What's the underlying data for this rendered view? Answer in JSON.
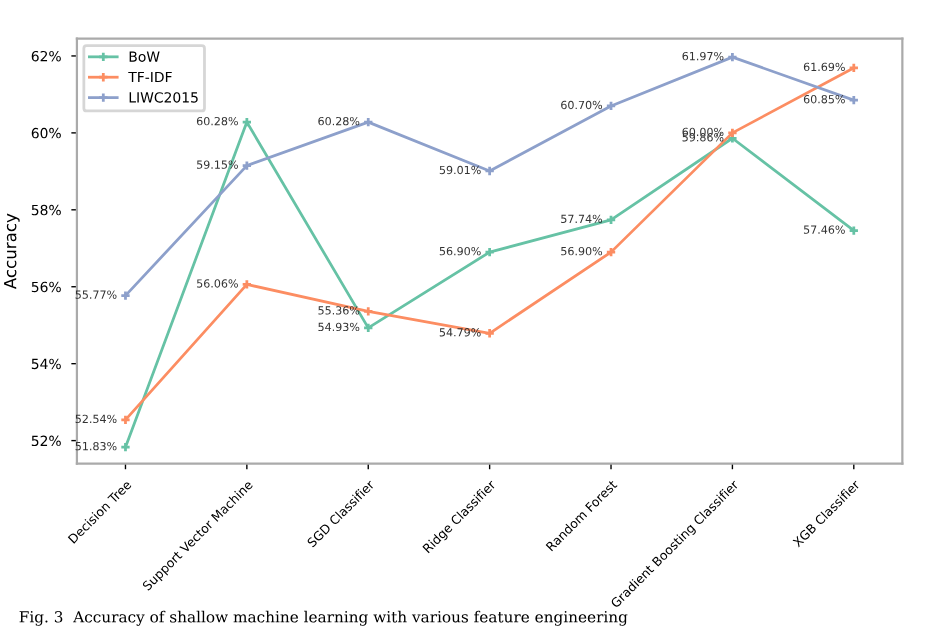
{
  "chart_data": {
    "type": "line",
    "ylabel": "Accuracy",
    "categories": [
      "Decision Tree",
      "Support Vector Machine",
      "SGD Classifier",
      "Ridge Classifier",
      "Random Forest",
      "Gradient Boosting Classifier",
      "XGB Classifier"
    ],
    "series": [
      {
        "name": "BoW",
        "color": "#66c2a5",
        "values": [
          51.83,
          60.28,
          54.93,
          56.9,
          57.74,
          59.86,
          57.46
        ],
        "value_labels": [
          "51.83%",
          "60.28%",
          "54.93%",
          "56.90%",
          "57.74%",
          "59.86%",
          "57.46%"
        ]
      },
      {
        "name": "TF-IDF",
        "color": "#fc8d62",
        "values": [
          52.54,
          56.06,
          55.36,
          54.79,
          56.9,
          60.0,
          61.69
        ],
        "value_labels": [
          "52.54%",
          "56.06%",
          "55.36%",
          "54.79%",
          "56.90%",
          "60.00%",
          "61.69%"
        ]
      },
      {
        "name": "LIWC2015",
        "color": "#8da0cb",
        "values": [
          55.77,
          59.15,
          60.28,
          59.01,
          60.7,
          61.97,
          60.85
        ],
        "value_labels": [
          "55.77%",
          "59.15%",
          "60.28%",
          "59.01%",
          "60.70%",
          "61.97%",
          "60.85%"
        ]
      }
    ],
    "ylim": [
      51.4,
      62.45
    ],
    "yticks": [
      {
        "value": 52,
        "label": "52%"
      },
      {
        "value": 54,
        "label": "54%"
      },
      {
        "value": 56,
        "label": "56%"
      },
      {
        "value": 58,
        "label": "58%"
      },
      {
        "value": 60,
        "label": "60%"
      },
      {
        "value": 62,
        "label": "62%"
      }
    ],
    "legend": "top left",
    "grid": false,
    "marker": "cross",
    "line_style": "solid",
    "annotations": [
      "Fig. 3  Accuracy of shallow machine learning with various feature engineering"
    ]
  }
}
